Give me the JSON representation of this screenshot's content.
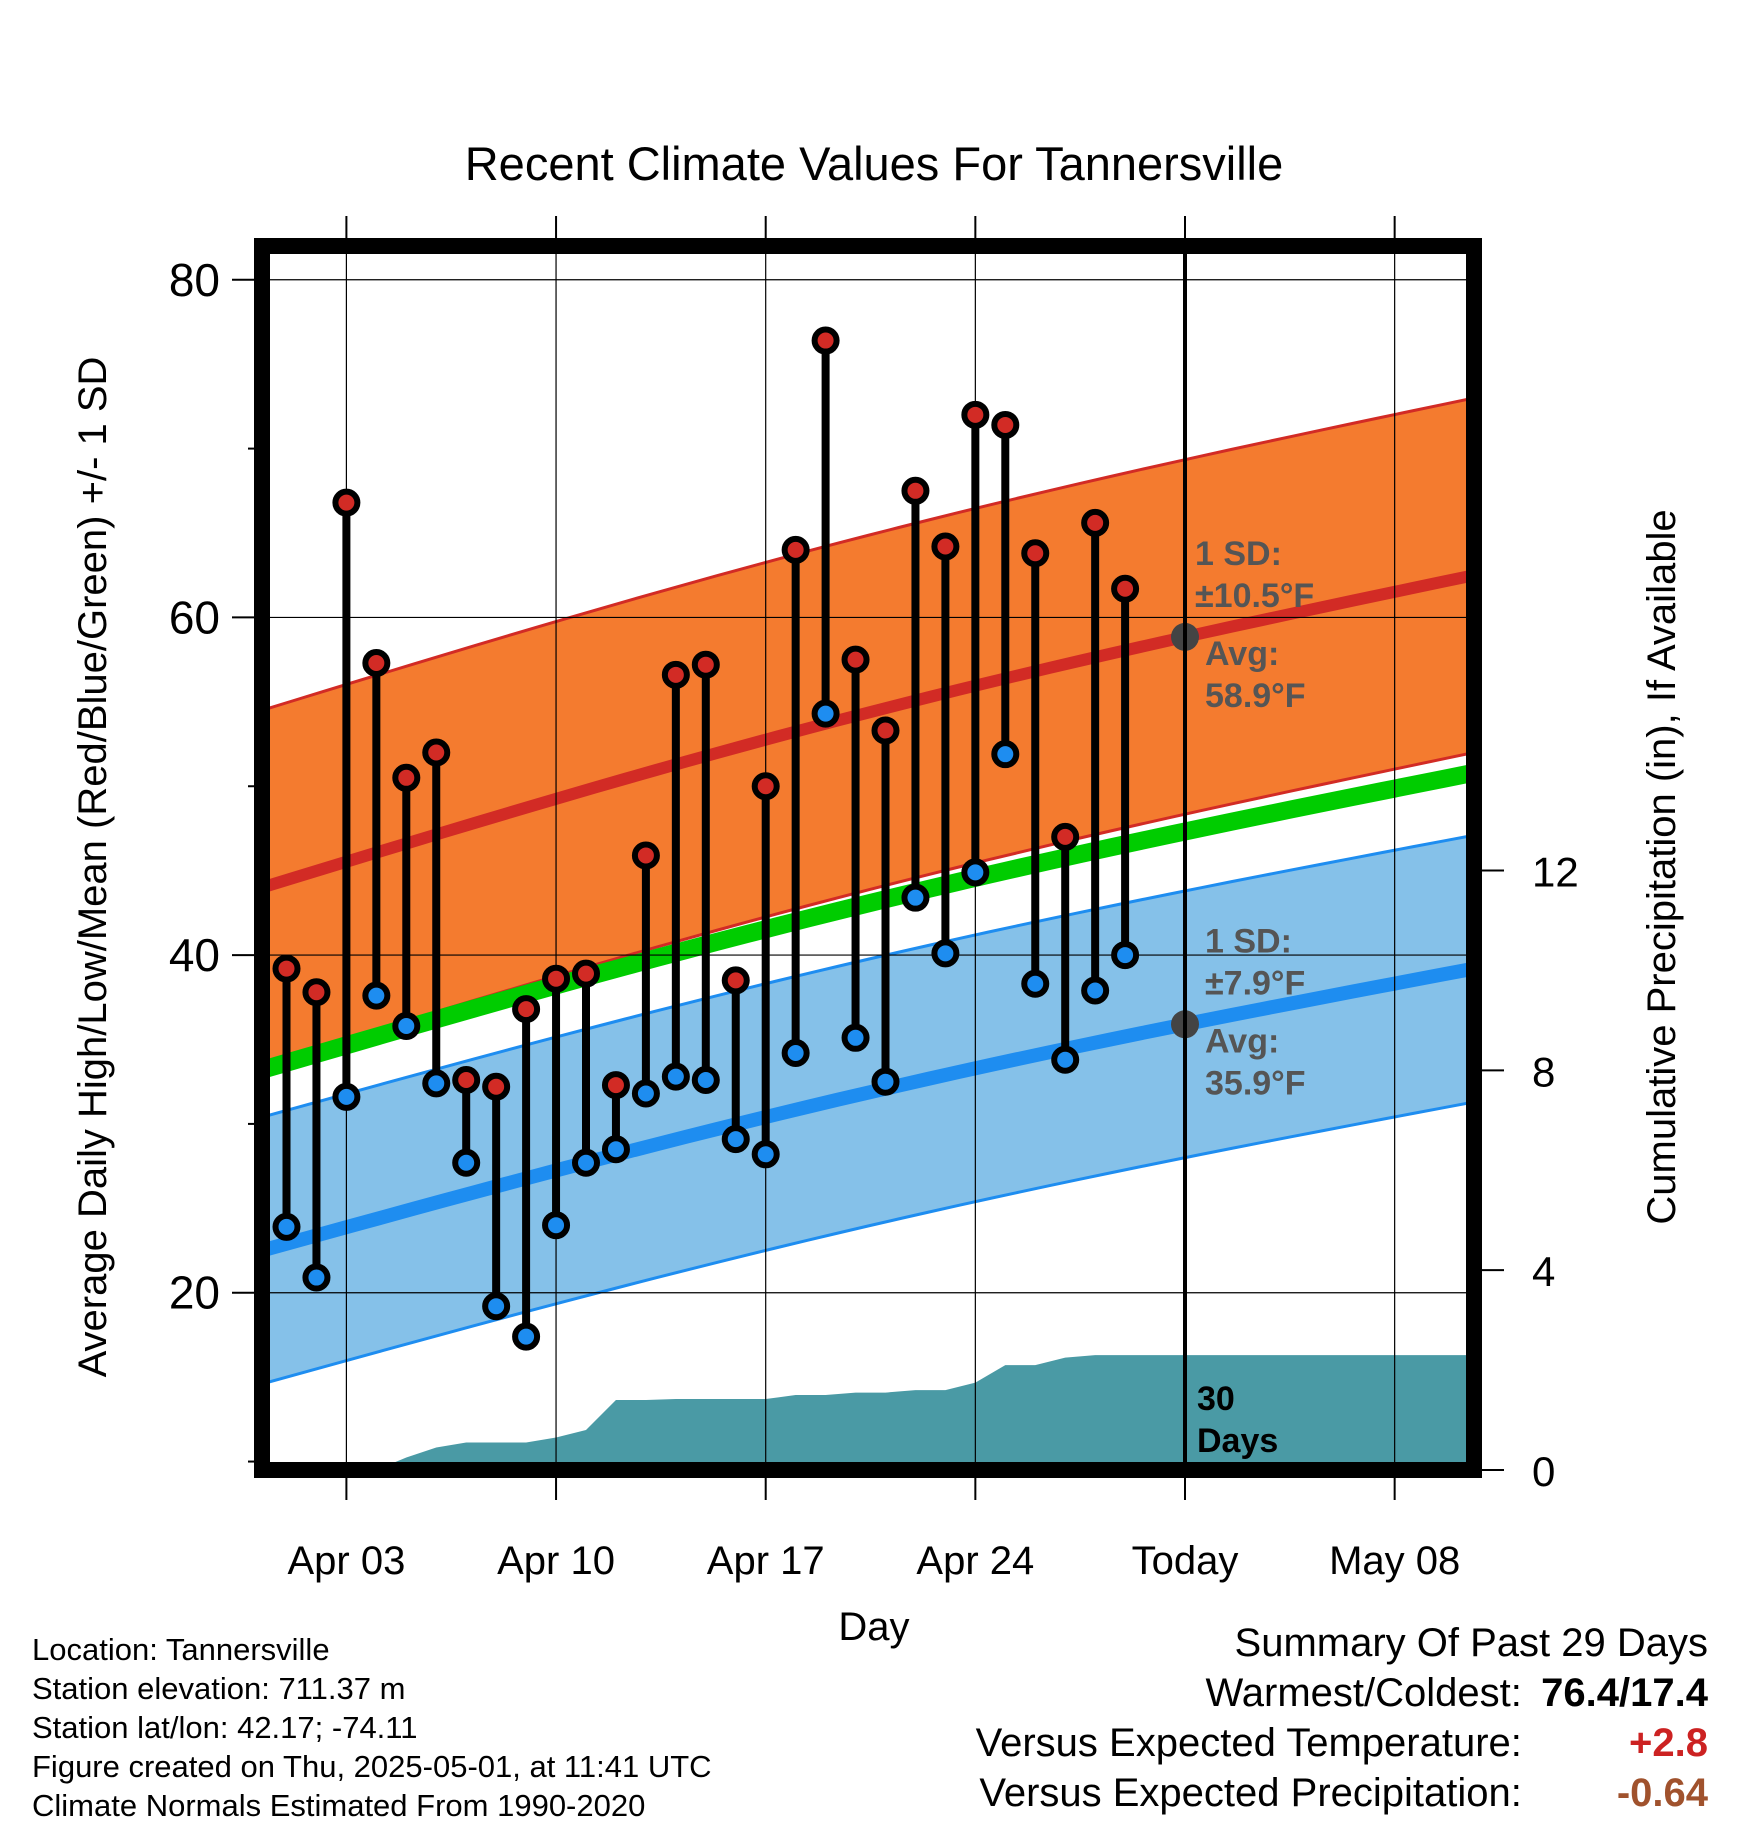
{
  "chart_data": {
    "type": "line",
    "title": "Recent Climate Values For Tannersville",
    "xlabel": "Day",
    "ylabel": "Average Daily High/Low/Mean (Red/Blue/Green) +/- 1 SD",
    "y2label": "Cumulative Precipitation (in), If Available",
    "ylim": [
      9.5,
      82
    ],
    "y2lim": [
      0,
      24.5
    ],
    "y_ticks": [
      "20",
      "40",
      "60",
      "80"
    ],
    "y2_ticks": [
      "0",
      "4",
      "8",
      "12"
    ],
    "x_tick_labels": [
      "Apr 03",
      "Apr 10",
      "Apr 17",
      "Apr 24",
      "Today",
      "May 08"
    ],
    "grid": true,
    "today_label": "30 Days",
    "days": [
      "Apr 01",
      "Apr 02",
      "Apr 03",
      "Apr 04",
      "Apr 05",
      "Apr 06",
      "Apr 07",
      "Apr 08",
      "Apr 09",
      "Apr 10",
      "Apr 11",
      "Apr 12",
      "Apr 13",
      "Apr 14",
      "Apr 15",
      "Apr 16",
      "Apr 17",
      "Apr 18",
      "Apr 19",
      "Apr 20",
      "Apr 21",
      "Apr 22",
      "Apr 23",
      "Apr 24",
      "Apr 25",
      "Apr 26",
      "Apr 27",
      "Apr 28",
      "Apr 29"
    ],
    "highs": [
      39.2,
      37.8,
      66.8,
      57.3,
      50.5,
      52.0,
      32.6,
      32.2,
      36.8,
      38.6,
      38.9,
      32.3,
      45.9,
      56.6,
      57.2,
      38.5,
      50.0,
      64.0,
      76.4,
      57.5,
      53.3,
      67.5,
      64.2,
      72.0,
      71.4,
      63.8,
      47.0,
      65.6,
      61.7
    ],
    "lows": [
      23.9,
      20.9,
      31.6,
      37.6,
      35.8,
      32.4,
      27.7,
      19.2,
      17.4,
      24.0,
      27.7,
      28.5,
      31.8,
      32.8,
      32.6,
      29.1,
      28.2,
      34.2,
      54.3,
      35.1,
      32.5,
      43.4,
      40.1,
      44.9,
      51.9,
      38.3,
      33.8,
      37.9,
      40.0
    ],
    "normal_high_avg": [
      44.0,
      62.5
    ],
    "normal_high_sd": "±10.5°F",
    "normal_high_today": "58.9°F",
    "normal_low_avg": [
      22.5,
      39.2
    ],
    "normal_low_sd": "±7.9°F",
    "normal_low_today": "35.9°F",
    "normal_mean_avg": [
      33.2,
      50.8
    ],
    "precip_cumulative": [
      0,
      0,
      0,
      0,
      0.25,
      0.45,
      0.55,
      0.55,
      0.55,
      0.65,
      0.8,
      1.4,
      1.4,
      1.42,
      1.42,
      1.42,
      1.42,
      1.5,
      1.5,
      1.55,
      1.55,
      1.6,
      1.6,
      1.75,
      2.1,
      2.1,
      2.25,
      2.3,
      2.3
    ],
    "series": [
      {
        "name": "High",
        "color": "#cc2222"
      },
      {
        "name": "Low",
        "color": "#2288ee"
      },
      {
        "name": "Mean",
        "color": "#00cc00"
      }
    ]
  },
  "labels": {
    "sd_prefix": "1 SD:",
    "avg_prefix": "Avg:"
  },
  "colors": {
    "high_band": "#f47b2f",
    "high_line": "#d22b25",
    "low_band": "#85c1e9",
    "low_line": "#1e8df0",
    "mean_line": "#00cc00",
    "precip_fill": "#4a9aa5",
    "annotation": "#555555",
    "positive": "#cc2222",
    "negative": "#a0522d"
  },
  "footer": {
    "location": "Location: Tannersville",
    "elevation": "Station elevation: 711.37 m",
    "latlon": "Station lat/lon: 42.17; -74.11",
    "created": "Figure created on Thu, 2025-05-01, at 11:41 UTC",
    "normals": "Climate Normals Estimated From 1990-2020"
  },
  "summary": {
    "title": "Summary Of Past 29 Days",
    "warm_cold_label": "Warmest/Coldest:",
    "warm_cold_value": "76.4/17.4",
    "temp_label": "Versus Expected Temperature:",
    "temp_value": "+2.8",
    "precip_label": "Versus Expected Precipitation:",
    "precip_value": "-0.64"
  }
}
